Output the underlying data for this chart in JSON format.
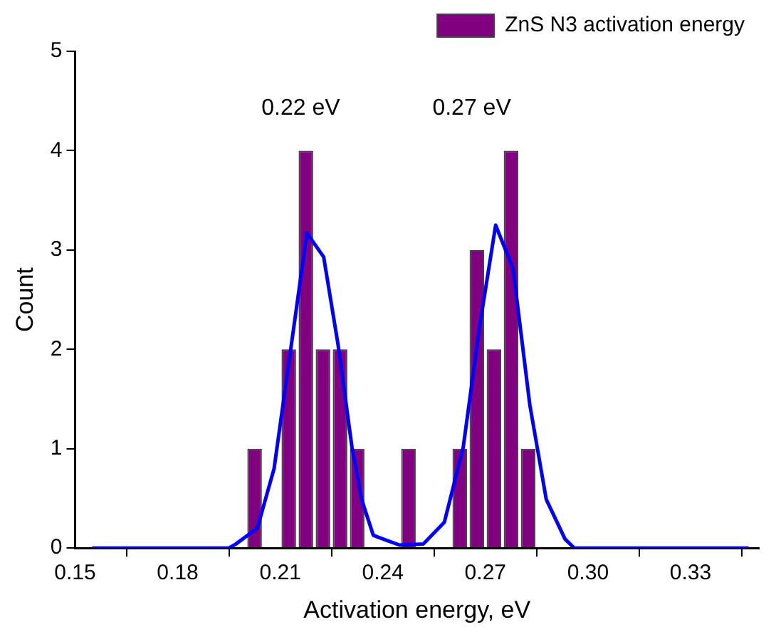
{
  "chart_data": {
    "type": "histogram",
    "xlabel": "Activation energy, eV",
    "ylabel": "Count",
    "bins": [
      0.2,
      0.205,
      0.21,
      0.215,
      0.22,
      0.225,
      0.23,
      0.235,
      0.24,
      0.245,
      0.25,
      0.255,
      0.26,
      0.265,
      0.27,
      0.275,
      0.28,
      0.285
    ],
    "series": [
      {
        "name": "ZnS N3 activation energy",
        "color": "#800080",
        "values": [
          1,
          0,
          2,
          4,
          2,
          2,
          1,
          0,
          0,
          1,
          0,
          0,
          1,
          3,
          2,
          4,
          1
        ]
      },
      {
        "type": "line",
        "color": "#0000ff",
        "x": [
          0.155,
          0.195,
          0.197,
          0.2033,
          0.2082,
          0.2178,
          0.2227,
          0.2269,
          0.231,
          0.2338,
          0.2372,
          0.2386,
          0.2449,
          0.2518,
          0.258,
          0.2635,
          0.2684,
          0.273,
          0.2781,
          0.283,
          0.2878,
          0.2933,
          0.296,
          0.347
        ],
        "values": [
          0,
          0,
          0.04,
          0.2,
          0.8,
          3.17,
          2.93,
          2.05,
          1.01,
          0.49,
          0.13,
          0.11,
          0.03,
          0.04,
          0.26,
          1.01,
          2.25,
          3.25,
          2.81,
          1.44,
          0.49,
          0.09,
          0,
          0
        ]
      }
    ],
    "xlim": [
      0.15,
      0.35
    ],
    "xticks": [
      0.15,
      0.18,
      0.21,
      0.24,
      0.27,
      {
        "value": 0.3,
        "label": "0.30"
      },
      0.33
    ],
    "ylim": [
      0,
      5
    ],
    "yticks": [
      0,
      1,
      2,
      3,
      4,
      5
    ],
    "annotations": [
      "0.22 eV",
      "0.27 eV"
    ],
    "grid": false,
    "legend": "top right",
    "marker": "none",
    "line_style": "solid"
  }
}
